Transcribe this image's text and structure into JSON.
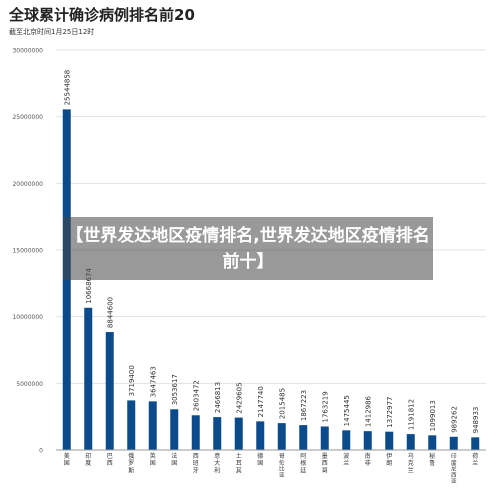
{
  "header": {
    "title": "全球累计确诊病例排名前20",
    "subtitle": "截至北京时间1月25日12时"
  },
  "overlay": {
    "caption": "【世界发达地区疫情排名,世界发达地区疫情排名前十】"
  },
  "colors": {
    "bar": "#0b4a8b",
    "grid": "#e3e3e3",
    "text": "#333333"
  },
  "chart_data": {
    "type": "bar",
    "title": "全球累计确诊病例排名前20",
    "subtitle": "截至北京时间1月25日12时",
    "xlabel": "",
    "ylabel": "",
    "ylim": [
      0,
      30000000
    ],
    "yticks": [
      "0",
      "5000000",
      "10000000",
      "15000000",
      "20000000",
      "25000000",
      "30000000"
    ],
    "grid": true,
    "categories": [
      "美国",
      "印度",
      "巴西",
      "俄罗斯",
      "英国",
      "法国",
      "西班牙",
      "意大利",
      "土耳其",
      "德国",
      "哥伦比亚",
      "阿根廷",
      "墨西哥",
      "波兰",
      "南非",
      "伊朗",
      "乌克兰",
      "秘鲁",
      "印度尼西亚",
      "荷兰"
    ],
    "values": [
      25544858,
      10668674,
      8844600,
      3719400,
      3647463,
      3053617,
      2603472,
      2466813,
      2429605,
      2147740,
      2015485,
      1867223,
      1763219,
      1475445,
      1412986,
      1372977,
      1191812,
      1099013,
      989262,
      948933
    ],
    "value_labels": [
      "25544858",
      "10668674",
      "8844600",
      "3719400",
      "3647463",
      "3053617",
      "2603472",
      "2466813",
      "2429605",
      "2147740",
      "2015485",
      "1867223",
      "1763219",
      "1475445",
      "1412986",
      "1372977",
      "1191812",
      "1099013",
      "989262",
      "948933"
    ]
  }
}
